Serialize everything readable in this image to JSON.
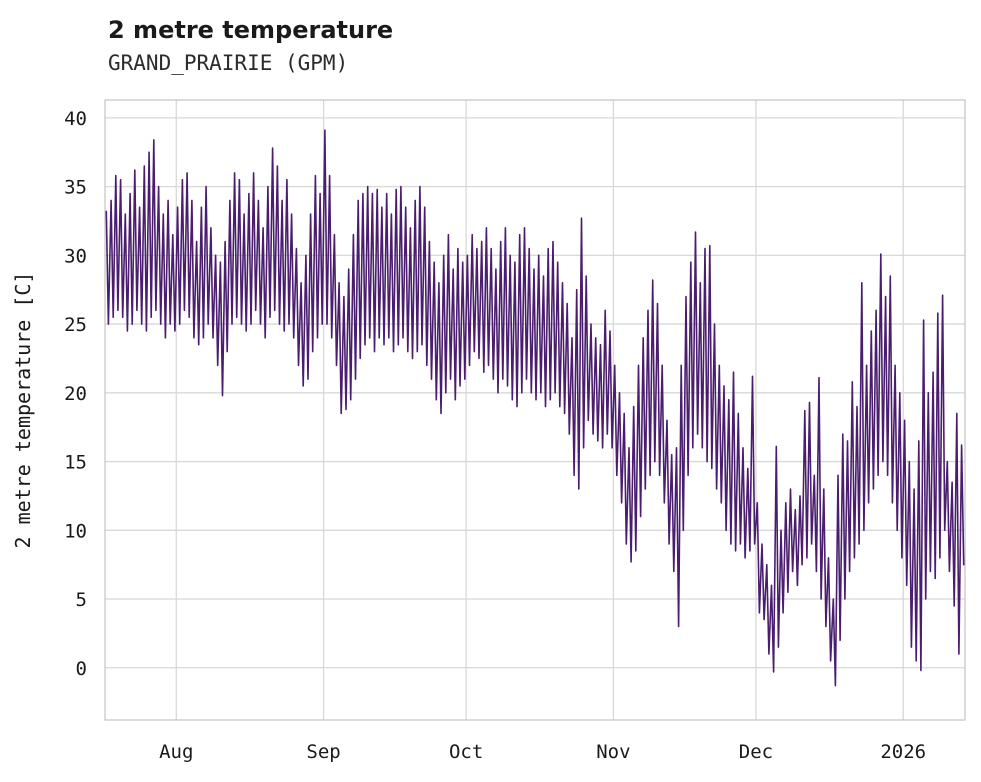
{
  "header": {
    "title": "2 metre temperature",
    "subtitle": "GRAND_PRAIRIE (GPM)"
  },
  "chart_data": {
    "type": "line",
    "title": "2 metre temperature",
    "subtitle": "GRAND_PRAIRIE (GPM)",
    "xlabel": "",
    "ylabel": "2 metre temperature [C]",
    "ylim": [
      -3.8,
      41.3
    ],
    "y_ticks": [
      0,
      5,
      10,
      15,
      20,
      25,
      30,
      35,
      40
    ],
    "x_ticks": [
      {
        "label": "Aug",
        "day": 15
      },
      {
        "label": "Sep",
        "day": 46
      },
      {
        "label": "Oct",
        "day": 76
      },
      {
        "label": "Nov",
        "day": 107
      },
      {
        "label": "Dec",
        "day": 137
      },
      {
        "label": "2026",
        "day": 168
      }
    ],
    "x_range_days": [
      0,
      181
    ],
    "grid": true,
    "legend": "none",
    "line_color": "#4a1d6e",
    "grid_color": "#d8d8d8",
    "border_color": "#c3c3c3",
    "series": [
      {
        "name": "2 metre temperature",
        "unit": "C",
        "note": "daily [min,max] pairs estimated from plot; diurnal oscillation between them",
        "daily_min_max": [
          [
            25,
            33.2
          ],
          [
            25.5,
            34
          ],
          [
            26,
            35.8
          ],
          [
            25.5,
            35.5
          ],
          [
            24.5,
            33
          ],
          [
            25,
            34.5
          ],
          [
            26,
            36.2
          ],
          [
            25,
            33.5
          ],
          [
            24.5,
            36.5
          ],
          [
            25.5,
            37.5
          ],
          [
            26,
            38.4
          ],
          [
            25,
            35
          ],
          [
            24,
            33
          ],
          [
            25,
            34
          ],
          [
            24.5,
            31.5
          ],
          [
            25,
            33.5
          ],
          [
            26,
            35.5
          ],
          [
            25.5,
            36
          ],
          [
            24,
            34
          ],
          [
            23.5,
            31
          ],
          [
            24,
            33.5
          ],
          [
            25,
            35
          ],
          [
            24,
            32
          ],
          [
            22,
            30
          ],
          [
            19.8,
            29.5
          ],
          [
            23,
            31
          ],
          [
            25,
            34
          ],
          [
            25.5,
            36
          ],
          [
            25,
            35.5
          ],
          [
            24.5,
            33
          ],
          [
            25,
            34.5
          ],
          [
            26,
            36
          ],
          [
            25,
            34
          ],
          [
            24,
            32
          ],
          [
            25.5,
            35
          ],
          [
            26,
            37.8
          ],
          [
            25,
            36.5
          ],
          [
            24.5,
            34
          ],
          [
            25,
            35.5
          ],
          [
            24,
            33
          ],
          [
            22,
            30.5
          ],
          [
            20.5,
            28
          ],
          [
            21,
            30
          ],
          [
            23,
            33
          ],
          [
            24,
            35.8
          ],
          [
            25,
            34.5
          ],
          [
            25,
            39.1
          ],
          [
            24,
            35.8
          ],
          [
            22,
            31.5
          ],
          [
            18.5,
            28
          ],
          [
            18.8,
            27
          ],
          [
            19.5,
            29
          ],
          [
            21,
            31.5
          ],
          [
            22.5,
            34
          ],
          [
            23.5,
            34.5
          ],
          [
            24,
            35
          ],
          [
            23,
            34.5
          ],
          [
            24,
            34.8
          ],
          [
            23.5,
            33.5
          ],
          [
            24,
            34.5
          ],
          [
            23,
            33
          ],
          [
            23.5,
            34.8
          ],
          [
            24,
            35
          ],
          [
            23,
            33.5
          ],
          [
            22.5,
            32
          ],
          [
            23,
            34
          ],
          [
            23.5,
            35
          ],
          [
            22,
            33.5
          ],
          [
            21,
            31
          ],
          [
            19.5,
            29.5
          ],
          [
            18.5,
            28
          ],
          [
            20,
            30
          ],
          [
            21,
            31.5
          ],
          [
            19.5,
            29
          ],
          [
            20.5,
            30.5
          ],
          [
            21,
            29.5
          ],
          [
            22,
            30
          ],
          [
            23,
            31.5
          ],
          [
            22.5,
            30.5
          ],
          [
            21.5,
            31
          ],
          [
            22,
            32
          ],
          [
            21,
            30.5
          ],
          [
            20,
            29
          ],
          [
            21,
            31
          ],
          [
            20.5,
            32
          ],
          [
            19.5,
            30
          ],
          [
            19,
            29.5
          ],
          [
            20,
            31.5
          ],
          [
            21,
            32
          ],
          [
            20,
            30.5
          ],
          [
            19.5,
            29
          ],
          [
            20,
            30
          ],
          [
            19,
            28.5
          ],
          [
            19.5,
            30.5
          ],
          [
            20,
            31
          ],
          [
            19,
            29.5
          ],
          [
            18.5,
            28
          ],
          [
            17,
            26.5
          ],
          [
            14,
            24
          ],
          [
            13,
            27.5
          ],
          [
            16,
            32.7
          ],
          [
            18,
            28.5
          ],
          [
            17,
            25
          ],
          [
            16.5,
            24
          ],
          [
            16,
            23.5
          ],
          [
            17,
            26
          ],
          [
            16,
            24.5
          ],
          [
            14,
            22
          ],
          [
            12,
            20
          ],
          [
            9,
            18.5
          ],
          [
            7.7,
            16
          ],
          [
            8.5,
            19
          ],
          [
            11,
            22
          ],
          [
            13,
            24
          ],
          [
            14,
            26
          ],
          [
            15,
            28.2
          ],
          [
            14,
            26.5
          ],
          [
            12,
            22
          ],
          [
            9,
            18
          ],
          [
            7,
            15.5
          ],
          [
            3,
            16
          ],
          [
            10,
            22
          ],
          [
            14,
            27
          ],
          [
            16,
            29.5
          ],
          [
            17,
            31.7
          ],
          [
            16,
            28
          ],
          [
            15,
            30.5
          ],
          [
            14.5,
            30.7
          ],
          [
            13,
            25
          ],
          [
            12,
            22
          ],
          [
            10,
            20.5
          ],
          [
            9,
            19.5
          ],
          [
            8.5,
            21.5
          ],
          [
            9,
            18.5
          ],
          [
            8,
            16
          ],
          [
            8.5,
            14.5
          ],
          [
            9,
            21.2
          ],
          [
            4,
            12
          ],
          [
            3.5,
            9
          ],
          [
            1,
            7.5
          ],
          [
            -0.3,
            6
          ],
          [
            1.5,
            16.1
          ],
          [
            4,
            10
          ],
          [
            5.5,
            12
          ],
          [
            7,
            13
          ],
          [
            6,
            11.5
          ],
          [
            7.5,
            12.5
          ],
          [
            8,
            18.7
          ],
          [
            9,
            19.3
          ],
          [
            7,
            14
          ],
          [
            5,
            21.1
          ],
          [
            3,
            13
          ],
          [
            0.5,
            8
          ],
          [
            -1.3,
            5
          ],
          [
            2,
            14
          ],
          [
            5,
            17
          ],
          [
            7,
            16.5
          ],
          [
            8,
            20.8
          ],
          [
            9,
            19
          ],
          [
            10,
            28
          ],
          [
            12,
            22
          ],
          [
            13,
            24.5
          ],
          [
            14,
            26
          ],
          [
            15,
            30.1
          ],
          [
            14,
            27
          ],
          [
            12,
            28.5
          ],
          [
            10,
            22
          ],
          [
            8,
            20
          ],
          [
            6,
            18
          ],
          [
            1.5,
            15
          ],
          [
            0.5,
            13
          ],
          [
            -0.2,
            16.5
          ],
          [
            5,
            25.3
          ],
          [
            7,
            20
          ],
          [
            6.5,
            21.5
          ],
          [
            8,
            25.8
          ],
          [
            10,
            27.1
          ],
          [
            7,
            15
          ],
          [
            4.5,
            13.5
          ],
          [
            1,
            18.5
          ],
          [
            7.5,
            16.2
          ]
        ]
      }
    ]
  }
}
